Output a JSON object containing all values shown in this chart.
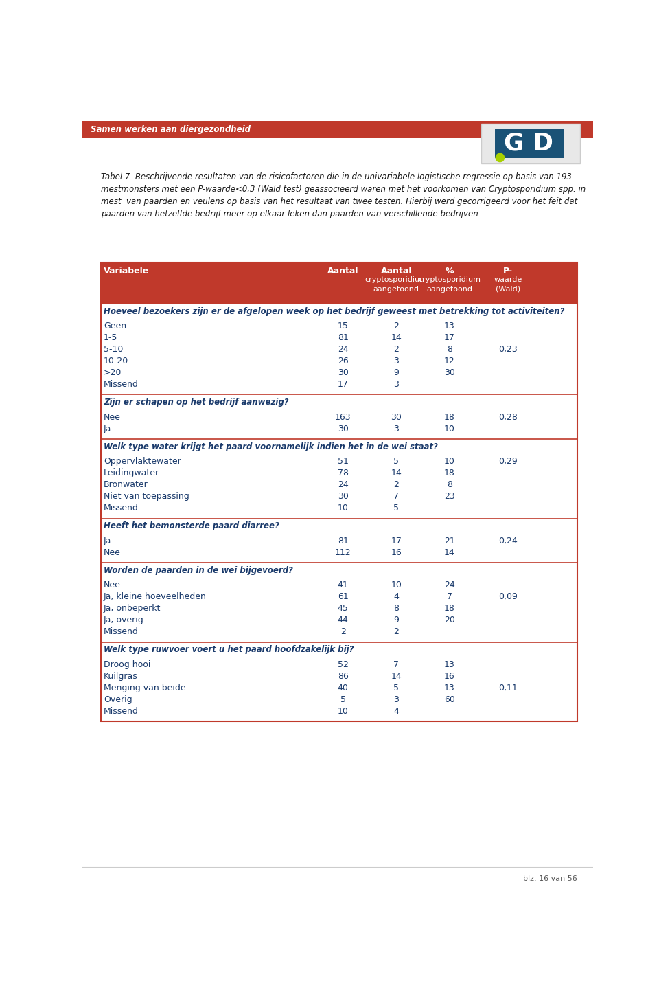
{
  "header_bg": "#c0392b",
  "header_text_color": "#ffffff",
  "body_text_color": "#1a3a6b",
  "border_color": "#c0392b",
  "background_color": "#ffffff",
  "page_header_bg": "#c0392b",
  "page_header_text": "Samen werken aan diergezondheid",
  "caption_text": "Tabel 7. Beschrijvende resultaten van de risicofactoren die in de univariabele logistische regressie op basis van 193\nmestmonsters met een P-waarde<0,3 (Wald test) geassocieerd waren met het voorkomen van Cryptosporidium spp. in\nmest  van paarden en veulens op basis van het resultaat van twee testen. Hierbij werd gecorrigeerd voor het feit dat\npaarden van hetzelfde bedrijf meer op elkaar leken dan paarden van verschillende bedrijven.",
  "sections": [
    {
      "section_title": "Hoeveel bezoekers zijn er de afgelopen week op het bedrijf geweest met betrekking tot activiteiten?",
      "rows": [
        [
          "Geen",
          "15",
          "2",
          "13",
          ""
        ],
        [
          "1-5",
          "81",
          "14",
          "17",
          ""
        ],
        [
          "5-10",
          "24",
          "2",
          "8",
          "0,23"
        ],
        [
          "10-20",
          "26",
          "3",
          "12",
          ""
        ],
        [
          ">20",
          "30",
          "9",
          "30",
          ""
        ],
        [
          "Missend",
          "17",
          "3",
          "",
          ""
        ]
      ]
    },
    {
      "section_title": "Zijn er schapen op het bedrijf aanwezig?",
      "rows": [
        [
          "Nee",
          "163",
          "30",
          "18",
          "0,28"
        ],
        [
          "Ja",
          "30",
          "3",
          "10",
          ""
        ]
      ]
    },
    {
      "section_title": "Welk type water krijgt het paard voornamelijk indien het in de wei staat?",
      "rows": [
        [
          "Oppervlaktewater",
          "51",
          "5",
          "10",
          "0,29"
        ],
        [
          "Leidingwater",
          "78",
          "14",
          "18",
          ""
        ],
        [
          "Bronwater",
          "24",
          "2",
          "8",
          ""
        ],
        [
          "Niet van toepassing",
          "30",
          "7",
          "23",
          ""
        ],
        [
          "Missend",
          "10",
          "5",
          "",
          ""
        ]
      ]
    },
    {
      "section_title": "Heeft het bemonsterde paard diarree?",
      "rows": [
        [
          "Ja",
          "81",
          "17",
          "21",
          "0,24"
        ],
        [
          "Nee",
          "112",
          "16",
          "14",
          ""
        ]
      ]
    },
    {
      "section_title": "Worden de paarden in de wei bijgevoerd?",
      "rows": [
        [
          "Nee",
          "41",
          "10",
          "24",
          ""
        ],
        [
          "Ja, kleine hoeveelheden",
          "61",
          "4",
          "7",
          "0,09"
        ],
        [
          "Ja, onbeperkt",
          "45",
          "8",
          "18",
          ""
        ],
        [
          "Ja, overig",
          "44",
          "9",
          "20",
          ""
        ],
        [
          "Missend",
          "2",
          "2",
          "",
          ""
        ]
      ]
    },
    {
      "section_title": "Welk type ruwvoer voert u het paard hoofdzakelijk bij?",
      "rows": [
        [
          "Droog hooi",
          "52",
          "7",
          "13",
          ""
        ],
        [
          "Kuilgras",
          "86",
          "14",
          "16",
          ""
        ],
        [
          "Menging van beide",
          "40",
          "5",
          "13",
          "0,11"
        ],
        [
          "Overig",
          "5",
          "3",
          "60",
          ""
        ],
        [
          "Missend",
          "10",
          "4",
          "",
          ""
        ]
      ]
    }
  ],
  "footer_text": "blz. 16 van 56"
}
